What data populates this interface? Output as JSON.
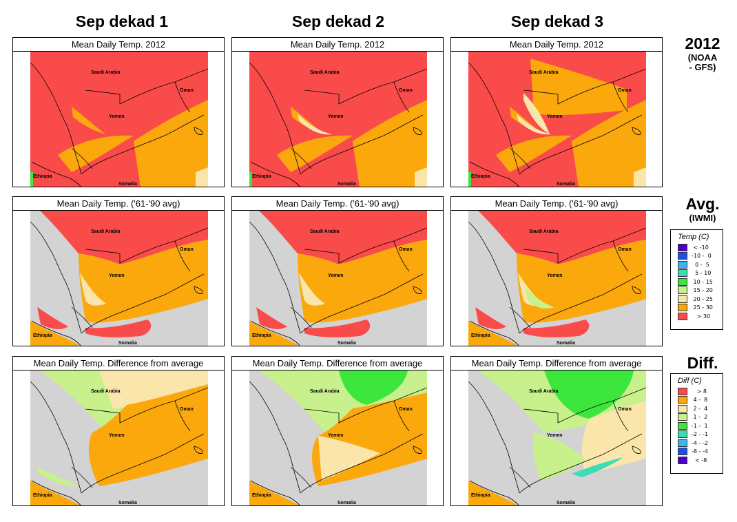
{
  "columns": [
    {
      "title": "Sep dekad 1"
    },
    {
      "title": "Sep dekad 2"
    },
    {
      "title": "Sep dekad 3"
    }
  ],
  "rows": [
    {
      "label_big": "2012",
      "label_small": "(NOAA\n- GFS)",
      "panel_title": "Mean Daily Temp. 2012"
    },
    {
      "label_big": "Avg.",
      "label_small": "(IWMI)",
      "panel_title": "Mean Daily Temp. ('61-'90 avg)"
    },
    {
      "label_big": "Diff.",
      "label_small": "",
      "panel_title": "Mean Daily Temp. Difference from average"
    }
  ],
  "map_labels": {
    "saudi": "Saudi Arabia",
    "oman": "Oman",
    "yemen": "Yemen",
    "ethiopia": "Ethiopia",
    "somalia": "Somalia"
  },
  "temp_legend": {
    "title": "Temp (C)",
    "items": [
      {
        "label": " < -10",
        "color": "#4b00c8"
      },
      {
        "label": "-10 -  0",
        "color": "#1e50e6"
      },
      {
        "label": "  0 -  5",
        "color": "#3cb4f0"
      },
      {
        "label": "  5 - 10",
        "color": "#3cdcb4"
      },
      {
        "label": " 10 - 15",
        "color": "#3ce63c"
      },
      {
        "label": " 15 - 20",
        "color": "#c8f08c"
      },
      {
        "label": " 20 - 25",
        "color": "#fae6aa"
      },
      {
        "label": " 25 - 30",
        "color": "#fba80d"
      },
      {
        "label": "   > 30",
        "color": "#fa4b4b"
      }
    ]
  },
  "diff_legend": {
    "title": "Diff (C)",
    "items": [
      {
        "label": "   > 8",
        "color": "#fa4b4b"
      },
      {
        "label": " 4 -  8",
        "color": "#fba80d"
      },
      {
        "label": " 2 -  4",
        "color": "#fae6aa"
      },
      {
        "label": " 1 -  2",
        "color": "#c8f08c"
      },
      {
        "label": "-1 -  1",
        "color": "#3ce63c"
      },
      {
        "label": "-2 - -1",
        "color": "#3cdcb4"
      },
      {
        "label": "-4 - -2",
        "color": "#3cb4f0"
      },
      {
        "label": "-8 - -4",
        "color": "#1e50e6"
      },
      {
        "label": "  < -8",
        "color": "#4b00c8"
      }
    ]
  },
  "colors": {
    "hot": "#fa4b4b",
    "warm": "#fba80d",
    "mild": "#fae6aa",
    "lightgreen": "#c8f08c",
    "green": "#3ce63c",
    "sea": "#d3d3d3"
  }
}
